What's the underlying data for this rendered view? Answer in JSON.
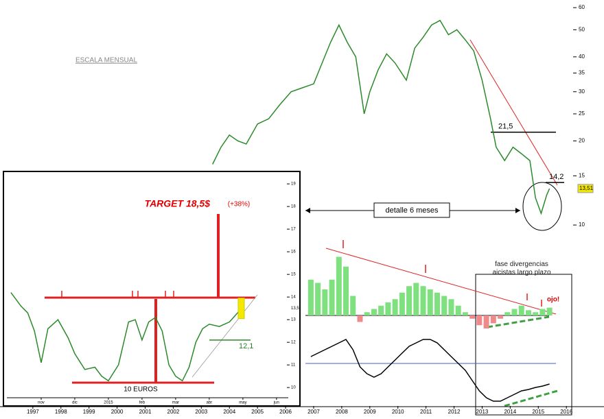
{
  "chart_data": [
    {
      "type": "line",
      "log": true,
      "color": "#2a8a2a",
      "xlim": [
        1995.83,
        2017.34
      ],
      "ylim": [
        9.35,
        63.9
      ],
      "xticks": [
        1997,
        1998,
        1999,
        2000,
        2001,
        2002,
        2003,
        2004,
        2005,
        2006,
        2007,
        2008,
        2009,
        2010,
        2011,
        2012,
        2013,
        2014,
        2015,
        2016
      ],
      "yticks": [
        10,
        15,
        20,
        25,
        30,
        35,
        40,
        50,
        60
      ],
      "x": [
        2003.4,
        2003.7,
        2004.0,
        2004.3,
        2004.6,
        2005.0,
        2005.4,
        2005.8,
        2006.2,
        2006.6,
        2007.0,
        2007.3,
        2007.6,
        2007.9,
        2008.2,
        2008.5,
        2008.8,
        2009.0,
        2009.3,
        2009.6,
        2009.9,
        2010.3,
        2010.6,
        2010.9,
        2011.2,
        2011.5,
        2011.8,
        2012.1,
        2012.4,
        2012.7,
        2013.0,
        2013.3,
        2013.5,
        2013.8,
        2014.1,
        2014.4,
        2014.7,
        2014.9,
        2015.1,
        2015.3,
        2015.4
      ],
      "values": [
        16.5,
        19,
        21,
        20,
        19.5,
        23,
        24,
        27,
        30,
        31,
        32,
        38,
        45,
        52,
        45,
        40,
        25,
        30,
        36,
        41,
        38,
        33,
        43,
        47,
        52,
        54,
        48,
        50,
        46,
        42,
        33,
        24,
        19,
        17,
        19,
        18,
        17,
        12.5,
        11,
        12.8,
        13.5
      ],
      "scale_label": "ESCALA MENSUAL",
      "levels": [
        {
          "value": 21.5,
          "label": "21,5"
        },
        {
          "value": 14.2,
          "label": "14,2"
        }
      ],
      "last_price": {
        "value": 13.51,
        "label": "13,51"
      },
      "detail_label": "detalle 6 meses"
    },
    {
      "type": "line",
      "color": "#2a8a2a",
      "xlim": [
        -1.02,
        7.35
      ],
      "ylim": [
        9.55,
        19.55
      ],
      "xticks": [
        {
          "value": 0,
          "label": "nov"
        },
        {
          "value": 1,
          "label": "dic"
        },
        {
          "value": 2,
          "label": "2015"
        },
        {
          "value": 3,
          "label": "feb"
        },
        {
          "value": 4,
          "label": "mar"
        },
        {
          "value": 5,
          "label": "abr"
        },
        {
          "value": 6,
          "label": "may"
        },
        {
          "value": 7,
          "label": "jun"
        }
      ],
      "yticks": [
        10,
        11,
        12,
        13,
        14,
        15,
        16,
        17,
        18,
        19
      ],
      "x": [
        -0.9,
        -0.6,
        -0.4,
        -0.2,
        0.0,
        0.2,
        0.5,
        0.8,
        1.0,
        1.3,
        1.6,
        1.8,
        2.0,
        2.3,
        2.6,
        2.8,
        3.0,
        3.2,
        3.4,
        3.6,
        3.8,
        4.0,
        4.2,
        4.4,
        4.6,
        4.8,
        5.0,
        5.3,
        5.6,
        5.9
      ],
      "values": [
        14.2,
        13.6,
        13.3,
        12.5,
        11.1,
        12.6,
        13.0,
        12.2,
        11.5,
        10.8,
        10.9,
        10.5,
        10.3,
        11.0,
        12.9,
        13.0,
        12.1,
        12.9,
        13.1,
        12.5,
        11.0,
        10.5,
        10.3,
        10.9,
        12.0,
        12.6,
        12.8,
        12.7,
        12.9,
        13.4
      ],
      "target_label": "TARGET 18,5$",
      "target_change": "(+38%)",
      "support_label": "10 EUROS",
      "level": {
        "value": 12.1,
        "label": "12,1"
      },
      "last_price": {
        "value": 13.5,
        "label": "13,5"
      }
    },
    {
      "type": "bar",
      "colors": {
        "up": "#7fe07f",
        "down": "#f08a8a"
      },
      "xlim": [
        1995.83,
        2017.34
      ],
      "ylim": [
        -20,
        100
      ],
      "x": [
        2006.9,
        2007.15,
        2007.4,
        2007.65,
        2007.9,
        2008.15,
        2008.4,
        2008.65,
        2008.9,
        2009.15,
        2009.4,
        2009.65,
        2009.9,
        2010.15,
        2010.4,
        2010.65,
        2010.9,
        2011.15,
        2011.4,
        2011.65,
        2011.9,
        2012.15,
        2012.4,
        2012.65,
        2012.9,
        2013.15,
        2013.4,
        2013.65,
        2013.9,
        2014.15,
        2014.4,
        2014.65,
        2014.9,
        2015.15,
        2015.4
      ],
      "values": [
        55,
        50,
        40,
        55,
        90,
        75,
        30,
        -10,
        5,
        10,
        15,
        20,
        25,
        35,
        45,
        50,
        45,
        40,
        35,
        30,
        25,
        15,
        5,
        -5,
        -15,
        -20,
        -12,
        -5,
        5,
        10,
        15,
        8,
        5,
        10,
        12
      ],
      "note": "fase divergencias aicistas largo plazo",
      "warning": "ojo!"
    },
    {
      "type": "line",
      "color": "#000000",
      "xlim": [
        1995.83,
        2017.34
      ],
      "ylim": [
        -60,
        40
      ],
      "x": [
        2006.9,
        2007.15,
        2007.4,
        2007.65,
        2007.9,
        2008.15,
        2008.4,
        2008.65,
        2008.9,
        2009.15,
        2009.4,
        2009.65,
        2009.9,
        2010.15,
        2010.4,
        2010.65,
        2010.9,
        2011.15,
        2011.4,
        2011.65,
        2011.9,
        2012.15,
        2012.4,
        2012.65,
        2012.9,
        2013.15,
        2013.4,
        2013.65,
        2013.9,
        2014.15,
        2014.4,
        2014.65,
        2014.9,
        2015.15,
        2015.4
      ],
      "values": [
        10,
        15,
        20,
        25,
        30,
        35,
        20,
        -5,
        -15,
        -20,
        -15,
        -5,
        5,
        15,
        25,
        30,
        35,
        35,
        30,
        20,
        10,
        0,
        -10,
        -25,
        -40,
        -50,
        -55,
        -55,
        -50,
        -45,
        -40,
        -38,
        -35,
        -33,
        -30
      ]
    }
  ]
}
